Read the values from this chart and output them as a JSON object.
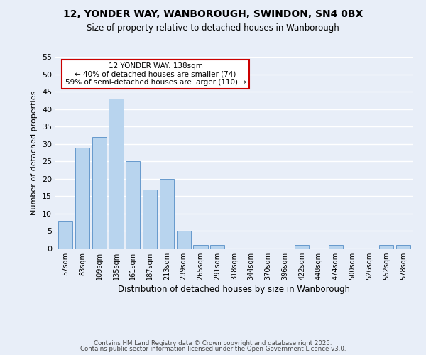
{
  "title_line1": "12, YONDER WAY, WANBOROUGH, SWINDON, SN4 0BX",
  "title_line2": "Size of property relative to detached houses in Wanborough",
  "xlabel": "Distribution of detached houses by size in Wanborough",
  "ylabel": "Number of detached properties",
  "bar_labels": [
    "57sqm",
    "83sqm",
    "109sqm",
    "135sqm",
    "161sqm",
    "187sqm",
    "213sqm",
    "239sqm",
    "265sqm",
    "291sqm",
    "318sqm",
    "344sqm",
    "370sqm",
    "396sqm",
    "422sqm",
    "448sqm",
    "474sqm",
    "500sqm",
    "526sqm",
    "552sqm",
    "578sqm"
  ],
  "bar_values": [
    8,
    29,
    32,
    43,
    25,
    17,
    20,
    5,
    1,
    1,
    0,
    0,
    0,
    0,
    1,
    0,
    1,
    0,
    0,
    1,
    1
  ],
  "bar_color": "#b8d4ee",
  "bar_edge_color": "#6699cc",
  "ylim": [
    0,
    55
  ],
  "yticks": [
    0,
    5,
    10,
    15,
    20,
    25,
    30,
    35,
    40,
    45,
    50,
    55
  ],
  "background_color": "#e8eef8",
  "grid_color": "#ffffff",
  "annotation_text": "12 YONDER WAY: 138sqm\n← 40% of detached houses are smaller (74)\n59% of semi-detached houses are larger (110) →",
  "annotation_box_edge": "#cc0000",
  "footer_line1": "Contains HM Land Registry data © Crown copyright and database right 2025.",
  "footer_line2": "Contains public sector information licensed under the Open Government Licence v3.0."
}
